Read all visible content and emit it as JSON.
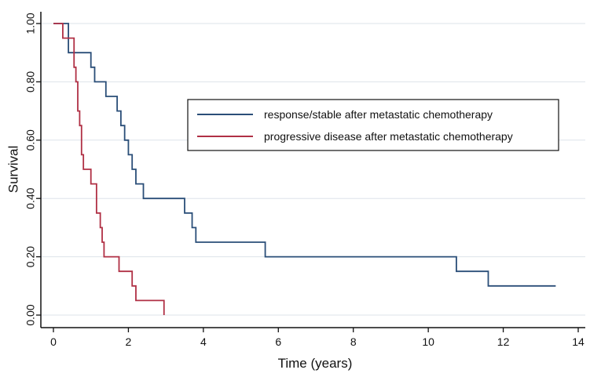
{
  "chart_data": {
    "type": "line",
    "subtype": "step",
    "title": "",
    "xlabel": "Time (years)",
    "ylabel": "Survival",
    "xlim": [
      0,
      14
    ],
    "ylim": [
      0,
      1
    ],
    "x_ticks": [
      {
        "value": 0,
        "label": "0"
      },
      {
        "value": 2,
        "label": "2"
      },
      {
        "value": 4,
        "label": "4"
      },
      {
        "value": 6,
        "label": "6"
      },
      {
        "value": 8,
        "label": "8"
      },
      {
        "value": 10,
        "label": "10"
      },
      {
        "value": 12,
        "label": "12"
      },
      {
        "value": 14,
        "label": "14"
      }
    ],
    "y_ticks": [
      {
        "value": 0,
        "label": "0.00"
      },
      {
        "value": 0.2,
        "label": "0.20"
      },
      {
        "value": 0.4,
        "label": "0.40"
      },
      {
        "value": 0.6,
        "label": "0.60"
      },
      {
        "value": 0.8,
        "label": "0.80"
      },
      {
        "value": 1,
        "label": "1.00"
      }
    ],
    "grid": true,
    "legend_position": "top-right",
    "series": [
      {
        "name": "response/stable after metastatic chemotherapy",
        "color": "#2a4e78",
        "points": [
          [
            0,
            1.0
          ],
          [
            0.4,
            0.9
          ],
          [
            1.0,
            0.85
          ],
          [
            1.1,
            0.8
          ],
          [
            1.4,
            0.75
          ],
          [
            1.7,
            0.7
          ],
          [
            1.8,
            0.65
          ],
          [
            1.9,
            0.6
          ],
          [
            2.0,
            0.55
          ],
          [
            2.1,
            0.5
          ],
          [
            2.2,
            0.45
          ],
          [
            2.4,
            0.4
          ],
          [
            3.5,
            0.35
          ],
          [
            3.7,
            0.3
          ],
          [
            3.8,
            0.25
          ],
          [
            5.65,
            0.2
          ],
          [
            10.75,
            0.15
          ],
          [
            11.6,
            0.1
          ],
          [
            13.4,
            0.1
          ]
        ]
      },
      {
        "name": "progressive disease after metastatic chemotherapy",
        "color": "#b03045",
        "points": [
          [
            0,
            1.0
          ],
          [
            0.25,
            0.95
          ],
          [
            0.55,
            0.85
          ],
          [
            0.6,
            0.8
          ],
          [
            0.65,
            0.7
          ],
          [
            0.7,
            0.65
          ],
          [
            0.75,
            0.55
          ],
          [
            0.8,
            0.5
          ],
          [
            1.0,
            0.45
          ],
          [
            1.15,
            0.35
          ],
          [
            1.25,
            0.3
          ],
          [
            1.3,
            0.25
          ],
          [
            1.35,
            0.2
          ],
          [
            1.75,
            0.15
          ],
          [
            2.1,
            0.1
          ],
          [
            2.2,
            0.05
          ],
          [
            2.95,
            0.0
          ]
        ]
      }
    ]
  },
  "colors": {
    "axis": "#111111",
    "grid": "#dde3ea",
    "legend_border": "#111111"
  }
}
